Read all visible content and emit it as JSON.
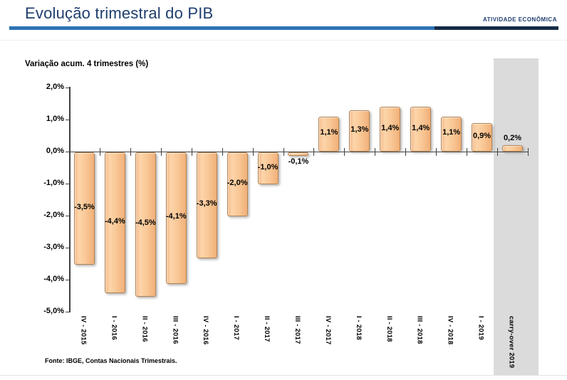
{
  "header": {
    "title": "Evolução trimestral do PIB",
    "section_label": "ATIVIDADE ECONÔMICA"
  },
  "chart": {
    "title": "Variação acum. 4 trimestres (%)",
    "source_note": "Fonte: IBGE, Contas Nacionais Trimestrais."
  },
  "chart_data": {
    "type": "bar",
    "title": "Variação acum. 4 trimestres (%)",
    "categories": [
      "IV - 2015",
      "I - 2016",
      "II - 2016",
      "III - 2016",
      "IV - 2016",
      "I - 2017",
      "II - 2017",
      "III - 2017",
      "IV - 2017",
      "I - 2018",
      "II - 2018",
      "III - 2018",
      "IV - 2018",
      "I - 2019",
      "carry-over 2019"
    ],
    "values": [
      -3.5,
      -4.4,
      -4.5,
      -4.1,
      -3.3,
      -2.0,
      -1.0,
      -0.1,
      1.1,
      1.3,
      1.4,
      1.4,
      1.1,
      0.9,
      0.2
    ],
    "value_labels": [
      "-3,5%",
      "-4,4%",
      "-4,5%",
      "-4,1%",
      "-3,3%",
      "-2,0%",
      "-1,0%",
      "-0,1%",
      "1,1%",
      "1,3%",
      "1,4%",
      "1,4%",
      "1,1%",
      "0,9%",
      "0,2%"
    ],
    "yticks": [
      "2,0%",
      "1,0%",
      "0,0%",
      "-1,0%",
      "-2,0%",
      "-3,0%",
      "-4,0%",
      "-5,0%"
    ],
    "ytick_values": [
      2,
      1,
      0,
      -1,
      -2,
      -3,
      -4,
      -5
    ],
    "ylim": [
      -5,
      2
    ],
    "grid": false,
    "legend": null,
    "highlighted_category": "carry-over 2019",
    "colors": {
      "bar_fill": "#F8C795",
      "bar_border": "#B08455",
      "highlight_band": "#DBDBDB",
      "axis": "#404040",
      "accent_blue": "#2E73B5",
      "accent_navy": "#152C47",
      "title_navy": "#1F3E6E"
    }
  }
}
